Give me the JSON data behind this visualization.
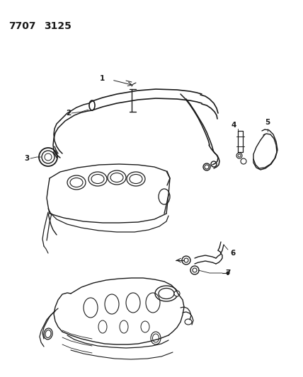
{
  "title_code": "7707  3125",
  "bg_color": "#ffffff",
  "line_color": "#1a1a1a",
  "title_fontsize": 10,
  "label_fontsize": 7.5,
  "fig_width": 4.28,
  "fig_height": 5.33,
  "dpi": 100
}
